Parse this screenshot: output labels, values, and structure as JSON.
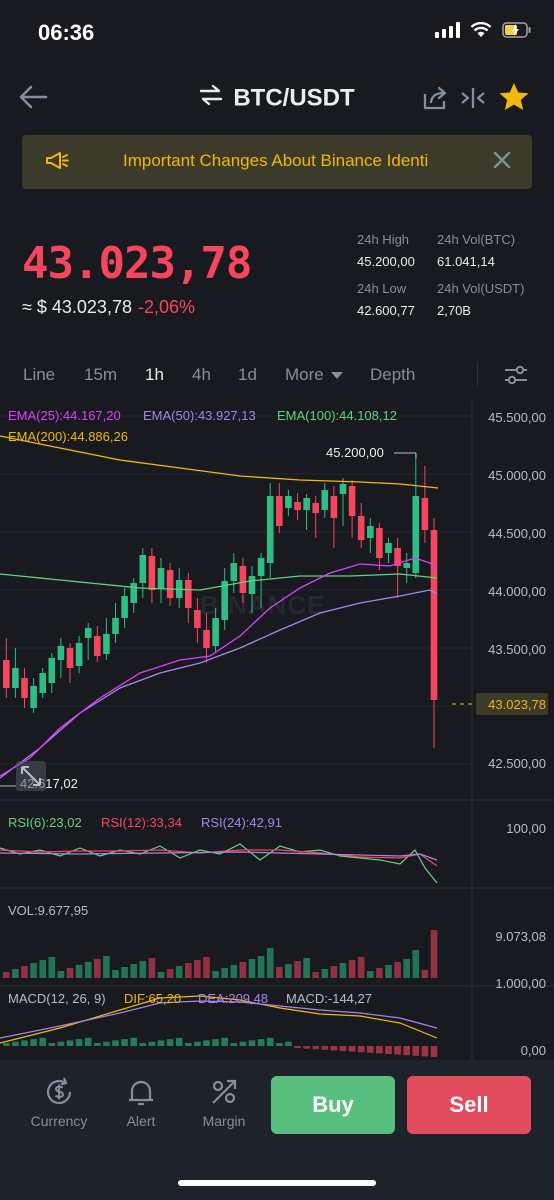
{
  "status_bar": {
    "time": "06:36"
  },
  "header": {
    "pair": "BTC/USDT"
  },
  "banner": {
    "text": "Important Changes About Binance Identi"
  },
  "price": {
    "last": "43.023,78",
    "approx": "≈ $ 43.023,78",
    "change": "-2,06%"
  },
  "stats": {
    "high_label": "24h High",
    "high": "45.200,00",
    "low_label": "24h Low",
    "low": "42.600,77",
    "vol_btc_label": "24h Vol(BTC)",
    "vol_btc": "61.041,14",
    "vol_usdt_label": "24h Vol(USDT)",
    "vol_usdt": "2,70B"
  },
  "tabs": [
    "Line",
    "15m",
    "1h",
    "4h",
    "1d",
    "More",
    "Depth"
  ],
  "active_tab": "1h",
  "indicators": {
    "ema25": "EMA(25):44.167,20",
    "ema50": "EMA(50):43.927,13",
    "ema100": "EMA(100):44.108,12",
    "ema200": "EMA(200):44.886,26",
    "rsi6": "RSI(6):23,02",
    "rsi12": "RSI(12):33,34",
    "rsi24": "RSI(24):42,91",
    "vol": "VOL:9.677,95",
    "macd": "MACD(12, 26, 9)",
    "dif": "DIF:65,20",
    "dea": "DEA:209,48",
    "macd_val": "MACD:-144,27"
  },
  "chart_labels": {
    "high_marker": "45.200,00",
    "low_marker": "42.617,02",
    "current_price": "43.023,78",
    "watermark": "BINANCE"
  },
  "price_axis": [
    "45.500,00",
    "45.000,00",
    "44.500,00",
    "44.000,00",
    "43.500,00",
    "43.000,00",
    "42.500,00"
  ],
  "rsi_axis": "100,00",
  "vol_axis": [
    "9.073,08",
    "1.000,00"
  ],
  "macd_axis": "0,00",
  "bottom_nav": {
    "currency": "Currency",
    "alert": "Alert",
    "margin": "Margin"
  },
  "buttons": {
    "buy": "Buy",
    "sell": "Sell"
  },
  "colors": {
    "up": "#2ebd85",
    "down": "#f6465d",
    "accent": "#f0b90b"
  }
}
